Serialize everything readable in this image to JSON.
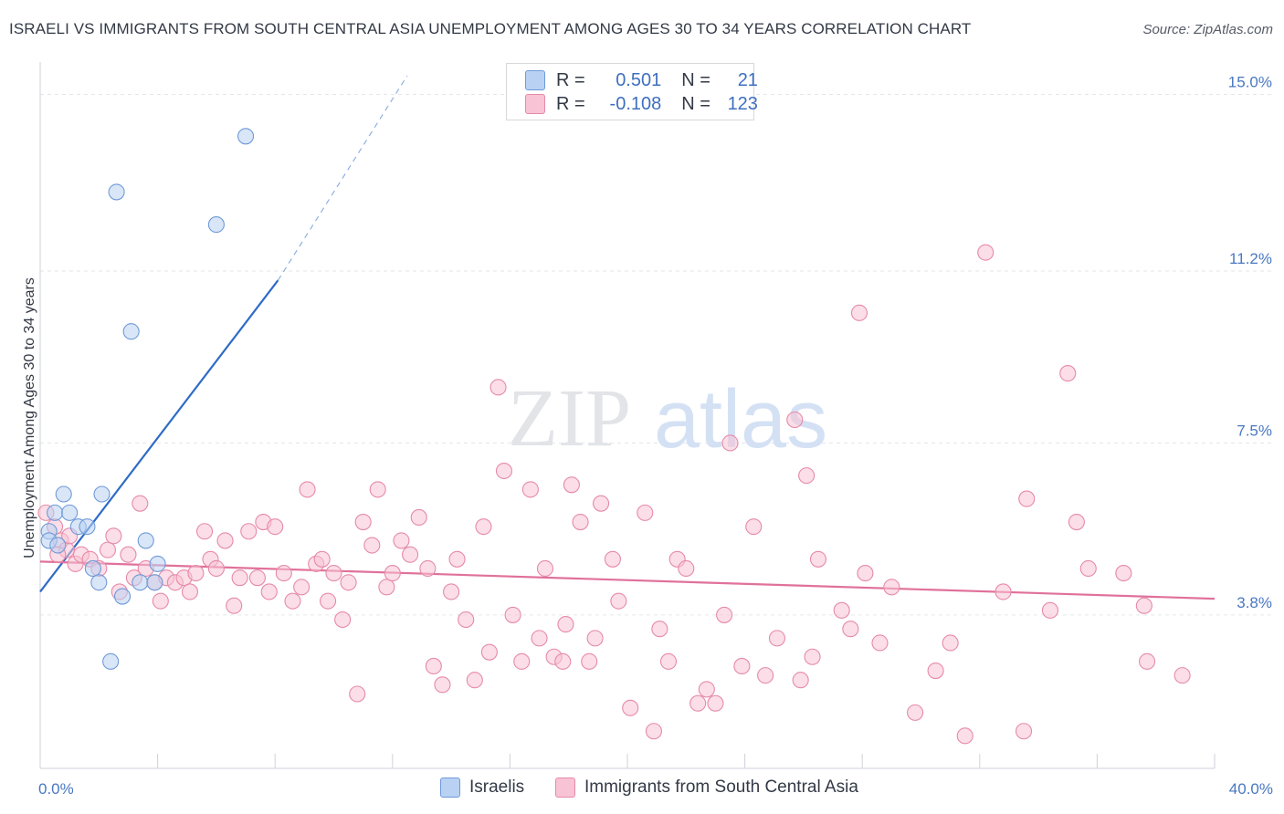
{
  "title": "ISRAELI VS IMMIGRANTS FROM SOUTH CENTRAL ASIA UNEMPLOYMENT AMONG AGES 30 TO 34 YEARS CORRELATION CHART",
  "source": "Source: ZipAtlas.com",
  "watermark": {
    "zip": "ZIP",
    "atlas": "atlas"
  },
  "legend": {
    "r_label": "R =",
    "n_label": "N =",
    "rows": [
      {
        "r": "0.501",
        "n": "21",
        "fill": "#b9d1f3",
        "stroke": "#6f9ad8"
      },
      {
        "r": "-0.108",
        "n": "123",
        "fill": "#f8c3d4",
        "stroke": "#e68aa9"
      }
    ]
  },
  "bottom_legend": [
    {
      "label": "Israelis",
      "fill": "#b9d1f3",
      "stroke": "#6f9ad8"
    },
    {
      "label": "Immigrants from South Central Asia",
      "fill": "#f8c3d4",
      "stroke": "#e68aa9"
    }
  ],
  "chart_data": {
    "type": "scatter",
    "ylabel": "Unemployment Among Ages 30 to 34 years",
    "xlim": [
      0,
      40
    ],
    "ylim": [
      0.5,
      15.5
    ],
    "x_tick_labels": [
      {
        "value": 0,
        "label": "0.0%"
      },
      {
        "value": 40,
        "label": "40.0%"
      }
    ],
    "y_ticks": [
      {
        "value": 3.8,
        "label": "3.8%"
      },
      {
        "value": 7.5,
        "label": "7.5%"
      },
      {
        "value": 11.2,
        "label": "11.2%"
      },
      {
        "value": 15.0,
        "label": "15.0%"
      }
    ],
    "grid": true,
    "series": [
      {
        "name": "Israelis",
        "color": "#6f9ad8",
        "fill": "#b9d1f3",
        "trend": {
          "x0": 0,
          "y0": 4.3,
          "x1": 8.1,
          "y1": 11.0,
          "dash_to_x": 12.5,
          "dash_to_y": 15.4,
          "color": "#2f6bc6"
        },
        "points": [
          [
            0.3,
            5.6
          ],
          [
            0.3,
            5.4
          ],
          [
            0.5,
            6.0
          ],
          [
            0.6,
            5.3
          ],
          [
            0.8,
            6.4
          ],
          [
            1.0,
            6.0
          ],
          [
            1.3,
            5.7
          ],
          [
            1.6,
            5.7
          ],
          [
            1.8,
            4.8
          ],
          [
            2.0,
            4.5
          ],
          [
            2.1,
            6.4
          ],
          [
            2.4,
            2.8
          ],
          [
            2.6,
            12.9
          ],
          [
            2.8,
            4.2
          ],
          [
            3.1,
            9.9
          ],
          [
            3.4,
            4.5
          ],
          [
            3.6,
            5.4
          ],
          [
            3.9,
            4.5
          ],
          [
            4.0,
            4.9
          ],
          [
            6.0,
            12.2
          ],
          [
            7.0,
            14.1
          ]
        ]
      },
      {
        "name": "Immigrants from South Central Asia",
        "color": "#e68aa9",
        "fill": "#f8c3d4",
        "trend": {
          "x0": 0,
          "y0": 4.95,
          "x1": 40,
          "y1": 4.15,
          "color": "#e0719a"
        },
        "points": [
          [
            0.2,
            6.0
          ],
          [
            0.5,
            5.7
          ],
          [
            0.7,
            5.4
          ],
          [
            0.9,
            5.2
          ],
          [
            1.2,
            4.9
          ],
          [
            1.4,
            5.1
          ],
          [
            1.7,
            5.0
          ],
          [
            2.0,
            4.8
          ],
          [
            2.3,
            5.2
          ],
          [
            2.5,
            5.5
          ],
          [
            2.7,
            4.3
          ],
          [
            3.0,
            5.1
          ],
          [
            3.2,
            4.6
          ],
          [
            3.4,
            6.2
          ],
          [
            3.6,
            4.8
          ],
          [
            3.9,
            4.5
          ],
          [
            4.1,
            4.1
          ],
          [
            4.3,
            4.6
          ],
          [
            4.6,
            4.5
          ],
          [
            4.9,
            4.6
          ],
          [
            5.1,
            4.3
          ],
          [
            5.3,
            4.7
          ],
          [
            5.6,
            5.6
          ],
          [
            5.8,
            5.0
          ],
          [
            6.0,
            4.8
          ],
          [
            6.3,
            5.4
          ],
          [
            6.6,
            4.0
          ],
          [
            6.8,
            4.6
          ],
          [
            7.1,
            5.6
          ],
          [
            7.4,
            4.6
          ],
          [
            7.6,
            5.8
          ],
          [
            7.8,
            4.3
          ],
          [
            8.0,
            5.7
          ],
          [
            8.3,
            4.7
          ],
          [
            8.6,
            4.1
          ],
          [
            8.9,
            4.4
          ],
          [
            9.1,
            6.5
          ],
          [
            9.4,
            4.9
          ],
          [
            9.6,
            5.0
          ],
          [
            9.8,
            4.1
          ],
          [
            10.0,
            4.7
          ],
          [
            10.3,
            3.7
          ],
          [
            10.5,
            4.5
          ],
          [
            10.8,
            2.1
          ],
          [
            11.0,
            5.8
          ],
          [
            11.3,
            5.3
          ],
          [
            11.5,
            6.5
          ],
          [
            11.8,
            4.4
          ],
          [
            12.0,
            4.7
          ],
          [
            12.3,
            5.4
          ],
          [
            12.6,
            5.1
          ],
          [
            12.9,
            5.9
          ],
          [
            13.2,
            4.8
          ],
          [
            13.4,
            2.7
          ],
          [
            13.7,
            2.3
          ],
          [
            14.0,
            4.3
          ],
          [
            14.2,
            5.0
          ],
          [
            14.5,
            3.7
          ],
          [
            14.8,
            2.4
          ],
          [
            15.1,
            5.7
          ],
          [
            15.3,
            3.0
          ],
          [
            15.6,
            8.7
          ],
          [
            15.8,
            6.9
          ],
          [
            16.1,
            3.8
          ],
          [
            16.4,
            2.8
          ],
          [
            16.7,
            6.5
          ],
          [
            17.0,
            3.3
          ],
          [
            17.2,
            4.8
          ],
          [
            17.5,
            2.9
          ],
          [
            17.8,
            2.8
          ],
          [
            17.9,
            3.6
          ],
          [
            18.1,
            6.6
          ],
          [
            18.4,
            5.8
          ],
          [
            18.7,
            2.8
          ],
          [
            18.9,
            3.3
          ],
          [
            19.1,
            6.2
          ],
          [
            19.5,
            5.0
          ],
          [
            19.7,
            4.1
          ],
          [
            20.1,
            1.8
          ],
          [
            20.6,
            6.0
          ],
          [
            20.9,
            1.3
          ],
          [
            21.1,
            3.5
          ],
          [
            21.4,
            2.8
          ],
          [
            21.7,
            5.0
          ],
          [
            22.0,
            4.8
          ],
          [
            22.4,
            1.9
          ],
          [
            22.7,
            2.2
          ],
          [
            23.0,
            1.9
          ],
          [
            23.3,
            3.8
          ],
          [
            23.5,
            7.5
          ],
          [
            23.9,
            2.7
          ],
          [
            24.3,
            5.7
          ],
          [
            24.7,
            2.5
          ],
          [
            25.1,
            3.3
          ],
          [
            25.7,
            8.0
          ],
          [
            26.1,
            6.8
          ],
          [
            26.5,
            5.0
          ],
          [
            27.3,
            3.9
          ],
          [
            27.6,
            3.5
          ],
          [
            28.1,
            4.7
          ],
          [
            29.0,
            4.4
          ],
          [
            29.8,
            1.7
          ],
          [
            31.0,
            3.2
          ],
          [
            31.5,
            1.2
          ],
          [
            32.2,
            11.6
          ],
          [
            33.5,
            1.3
          ],
          [
            33.6,
            6.3
          ],
          [
            35.0,
            9.0
          ],
          [
            35.3,
            5.8
          ],
          [
            35.7,
            4.8
          ],
          [
            36.9,
            4.7
          ],
          [
            37.6,
            4.0
          ],
          [
            37.7,
            2.8
          ],
          [
            38.9,
            2.5
          ],
          [
            25.9,
            2.4
          ],
          [
            26.3,
            2.9
          ],
          [
            28.6,
            3.2
          ],
          [
            30.5,
            2.6
          ],
          [
            32.8,
            4.3
          ],
          [
            34.4,
            3.9
          ],
          [
            27.9,
            10.3
          ],
          [
            0.6,
            5.1
          ],
          [
            1.0,
            5.5
          ]
        ]
      }
    ]
  }
}
